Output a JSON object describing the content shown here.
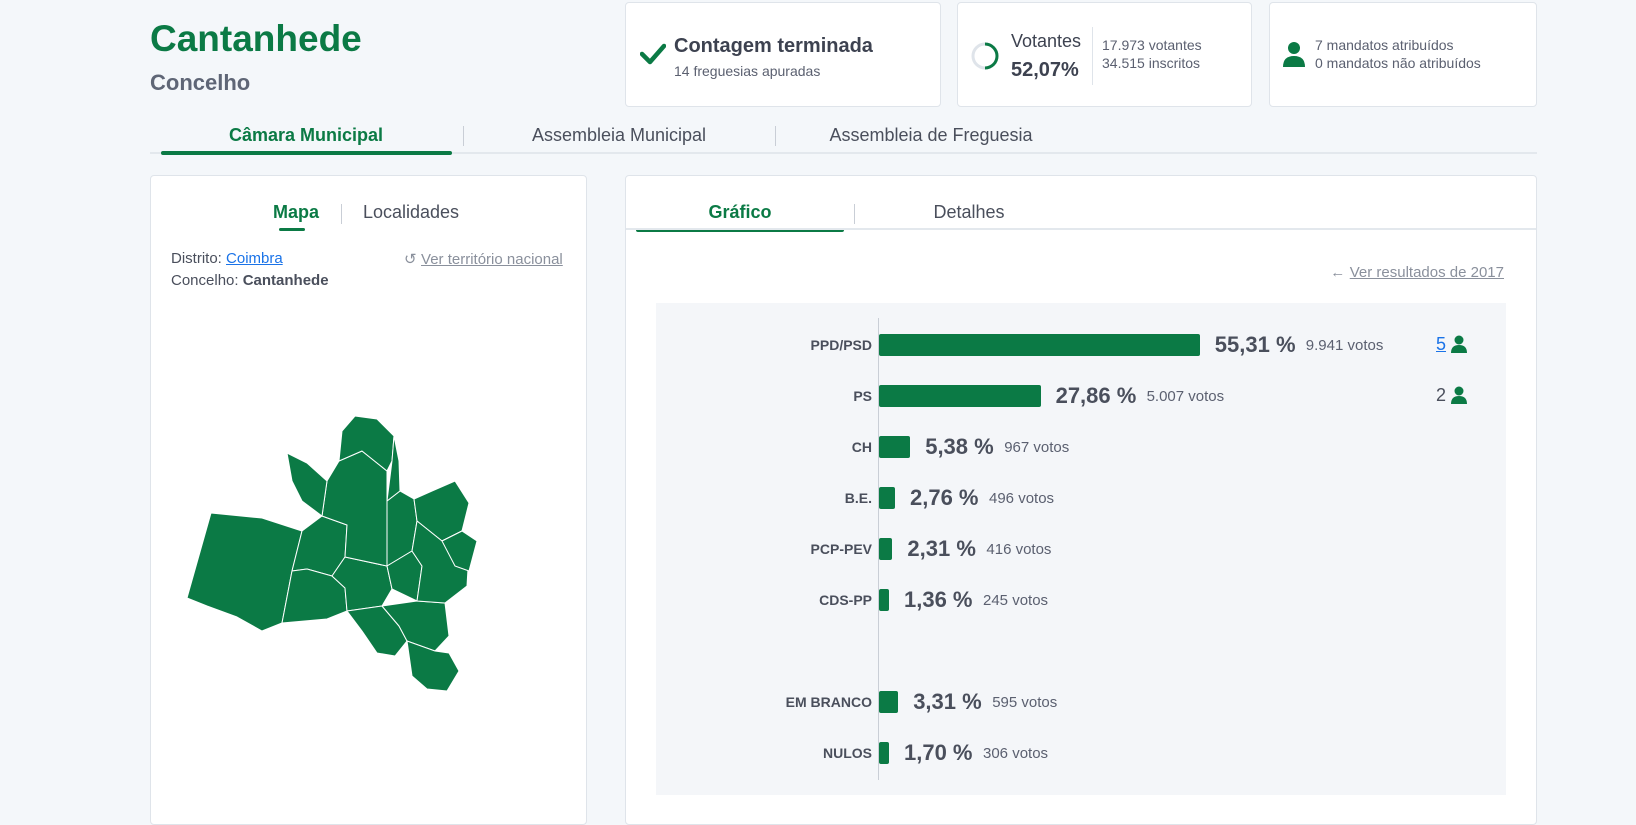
{
  "header": {
    "title": "Cantanhede",
    "subtitle": "Concelho"
  },
  "status": {
    "count_title": "Contagem terminada",
    "count_sub": "14 freguesias apuradas",
    "voters_label": "Votantes",
    "voters_pct": "52,07%",
    "voters_count": "17.973 votantes",
    "registered": "34.515 inscritos",
    "seats_assigned": "7 mandatos atribuídos",
    "seats_unassigned": "0 mandatos não atribuídos"
  },
  "main_tabs": [
    "Câmara Municipal",
    "Assembleia Municipal",
    "Assembleia de Freguesia"
  ],
  "left": {
    "tabs": [
      "Mapa",
      "Localidades"
    ],
    "district_label": "Distrito:",
    "district_value": "Coimbra",
    "county_label": "Concelho:",
    "county_value": "Cantanhede",
    "national_link": "Ver território nacional"
  },
  "right": {
    "tabs": [
      "Gráfico",
      "Detalhes"
    ],
    "prev_link": "Ver resultados de 2017"
  },
  "colors": {
    "accent": "#0b7a45",
    "link": "#1a73e8"
  },
  "chart_data": {
    "type": "bar",
    "orientation": "horizontal",
    "categories": [
      "PPD/PSD",
      "PS",
      "CH",
      "B.E.",
      "PCP-PEV",
      "CDS-PP",
      "EM BRANCO",
      "NULOS"
    ],
    "values": [
      55.31,
      27.86,
      5.38,
      2.76,
      2.31,
      1.36,
      3.31,
      1.7
    ],
    "value_labels": [
      "55,31 %",
      "27,86 %",
      "5,38 %",
      "2,76 %",
      "2,31 %",
      "1,36 %",
      "3,31 %",
      "1,70 %"
    ],
    "votes": [
      "9.941 votos",
      "5.007 votos",
      "967 votos",
      "496 votos",
      "416 votos",
      "245 votos",
      "595 votos",
      "306 votos"
    ],
    "seats": [
      "5",
      "2",
      "",
      "",
      "",
      "",
      "",
      ""
    ]
  }
}
